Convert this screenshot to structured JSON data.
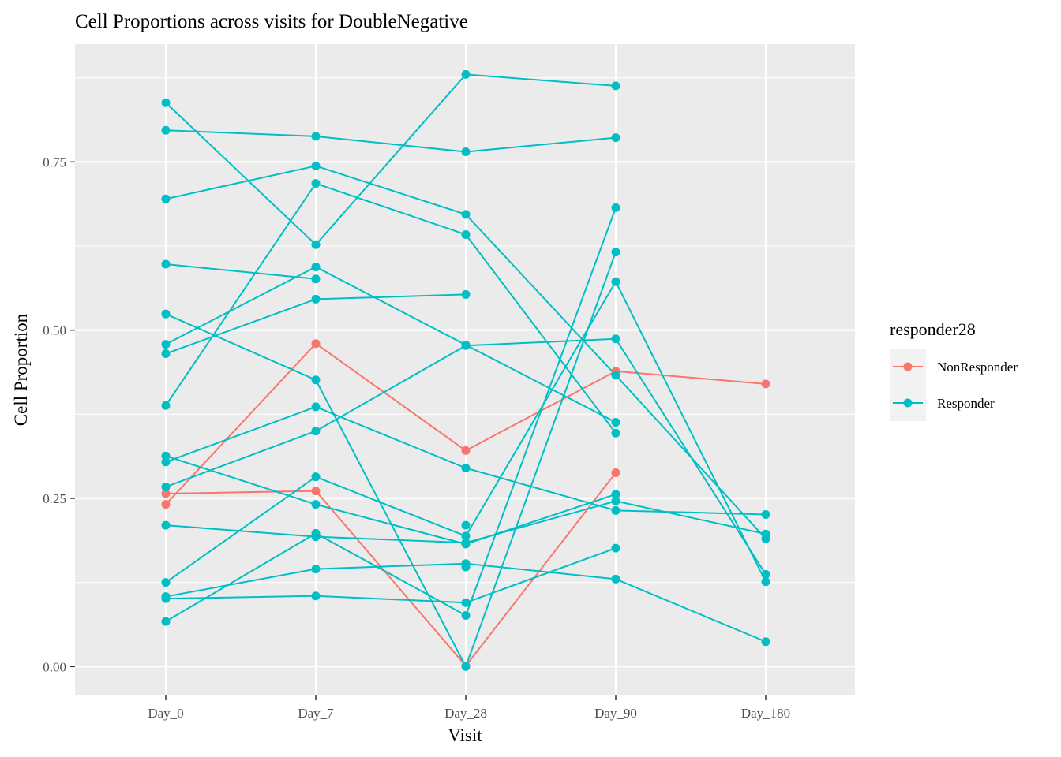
{
  "chart_data": {
    "type": "line",
    "title": "Cell Proportions across visits for DoubleNegative",
    "xlabel": "Visit",
    "ylabel": "Cell Proportion",
    "categories": [
      "Day_0",
      "Day_7",
      "Day_28",
      "Day_90",
      "Day_180"
    ],
    "yticks": [
      0.0,
      0.25,
      0.5,
      0.75
    ],
    "ytick_labels": [
      "0.00",
      "0.25",
      "0.50",
      "0.75"
    ],
    "ylim": [
      -0.043,
      0.925
    ],
    "grid": true,
    "legend": {
      "title": "responder28",
      "position": "right",
      "entries": [
        {
          "label": "NonResponder",
          "color": "#F8766D"
        },
        {
          "label": "Responder",
          "color": "#00BFC4"
        }
      ]
    },
    "series": [
      {
        "group": "NonResponder",
        "values": [
          0.241,
          0.48,
          0.321,
          0.439,
          0.42
        ]
      },
      {
        "group": "NonResponder",
        "values": [
          0.257,
          0.261,
          0.001,
          0.288,
          null
        ]
      },
      {
        "group": "Responder",
        "values": [
          0.838,
          0.627,
          0.88,
          0.863,
          null
        ]
      },
      {
        "group": "Responder",
        "values": [
          0.797,
          0.788,
          0.765,
          0.786,
          null
        ]
      },
      {
        "group": "Responder",
        "values": [
          0.695,
          0.744,
          0.672,
          0.433,
          0.19
        ]
      },
      {
        "group": "Responder",
        "values": [
          0.388,
          0.718,
          0.642,
          0.347,
          null
        ]
      },
      {
        "group": "Responder",
        "values": [
          0.598,
          0.576,
          null,
          null,
          null
        ]
      },
      {
        "group": "Responder",
        "values": [
          0.479,
          0.594,
          0.478,
          0.363,
          null
        ]
      },
      {
        "group": "Responder",
        "values": [
          0.465,
          0.546,
          0.553,
          null,
          null
        ]
      },
      {
        "group": "Responder",
        "values": [
          0.524,
          0.426,
          0.0,
          0.616,
          null
        ]
      },
      {
        "group": "Responder",
        "values": [
          0.304,
          0.386,
          0.295,
          0.232,
          0.226
        ]
      },
      {
        "group": "Responder",
        "values": [
          0.267,
          0.35,
          0.477,
          0.487,
          0.137
        ]
      },
      {
        "group": "Responder",
        "values": [
          0.313,
          0.241,
          0.182,
          0.256,
          null
        ]
      },
      {
        "group": "Responder",
        "values": [
          0.125,
          0.282,
          0.194,
          0.572,
          0.126
        ]
      },
      {
        "group": "Responder",
        "values": [
          0.21,
          0.193,
          0.184,
          0.246,
          0.197
        ]
      },
      {
        "group": "Responder",
        "values": [
          0.067,
          0.198,
          0.076,
          0.682,
          null
        ]
      },
      {
        "group": "Responder",
        "values": [
          0.104,
          0.145,
          0.153,
          0.13,
          0.037
        ]
      },
      {
        "group": "Responder",
        "values": [
          0.101,
          0.105,
          0.095,
          0.176,
          null
        ]
      },
      {
        "group": "Responder",
        "values": [
          null,
          null,
          0.21,
          null,
          null
        ]
      },
      {
        "group": "Responder",
        "values": [
          null,
          null,
          0.148,
          null,
          null
        ]
      }
    ]
  }
}
